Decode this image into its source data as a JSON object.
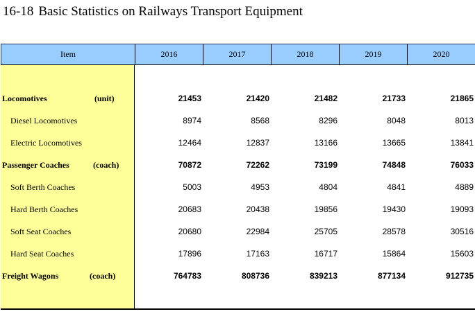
{
  "title": {
    "number": "16-18",
    "text": "Basic Statistics on Railways Transport Equipment"
  },
  "header": {
    "item": "Item",
    "years": [
      "2016",
      "2017",
      "2018",
      "2019",
      "2020"
    ]
  },
  "rows": [
    {
      "label": "Locomotives",
      "unit": "(unit)",
      "bold": true,
      "indent": false,
      "values": [
        "21453",
        "21420",
        "21482",
        "21733",
        "21865"
      ]
    },
    {
      "label": "Diesel Locomotives",
      "unit": "",
      "bold": false,
      "indent": true,
      "values": [
        "8974",
        "8568",
        "8296",
        "8048",
        "8013"
      ]
    },
    {
      "label": "Electric Locomotives",
      "unit": "",
      "bold": false,
      "indent": true,
      "values": [
        "12464",
        "12837",
        "13166",
        "13665",
        "13841"
      ]
    },
    {
      "label": "Passenger Coaches",
      "unit": "(coach)",
      "bold": true,
      "indent": false,
      "values": [
        "70872",
        "72262",
        "73199",
        "74848",
        "76033"
      ]
    },
    {
      "label": "Soft Berth Coaches",
      "unit": "",
      "bold": false,
      "indent": true,
      "values": [
        "5003",
        "4953",
        "4804",
        "4841",
        "4889"
      ]
    },
    {
      "label": "Hard Berth Coaches",
      "unit": "",
      "bold": false,
      "indent": true,
      "values": [
        "20683",
        "20438",
        "19856",
        "19430",
        "19093"
      ]
    },
    {
      "label": "Soft Seat Coaches",
      "unit": "",
      "bold": false,
      "indent": true,
      "values": [
        "20680",
        "22984",
        "25705",
        "28578",
        "30516"
      ]
    },
    {
      "label": "Hard Seat Coaches",
      "unit": "",
      "bold": false,
      "indent": true,
      "values": [
        "17896",
        "17163",
        "16717",
        "15864",
        "15603"
      ]
    },
    {
      "label": "Freight Wagons",
      "unit": "(coach)",
      "bold": true,
      "indent": false,
      "values": [
        "764783",
        "808736",
        "839213",
        "877134",
        "912735"
      ]
    }
  ],
  "colors": {
    "header_bg": "#99ccff",
    "item_col_bg": "#ffff99"
  }
}
